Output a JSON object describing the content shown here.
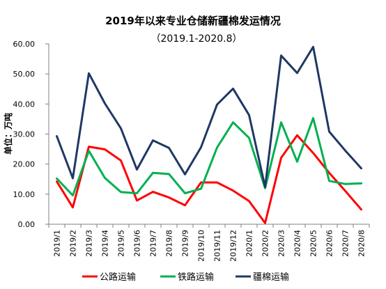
{
  "chart_data": {
    "type": "line",
    "title": "2019年以来专业仓储新疆棉发运情况",
    "subtitle": "（2019.1-2020.8）",
    "ylabel": "单位：万吨",
    "xlabel": "",
    "ylim": [
      0,
      60
    ],
    "yticks": [
      "0.00",
      "10.00",
      "20.00",
      "30.00",
      "40.00",
      "50.00",
      "60.00"
    ],
    "grid": false,
    "legend_position": "bottom",
    "categories": [
      "2019/1",
      "2019/2",
      "2019/3",
      "2019/4",
      "2019/5",
      "2019/6",
      "2019/7",
      "2019/8",
      "2019/9",
      "2019/10",
      "2019/11",
      "2019/12",
      "2020/1",
      "2020/2",
      "2020/3",
      "2020/4",
      "2020/5",
      "2020/6",
      "2020/7",
      "2020/8"
    ],
    "series": [
      {
        "name": "公路运输",
        "color": "#ff0000",
        "values": [
          14.2,
          5.6,
          25.8,
          24.9,
          21.2,
          7.9,
          10.8,
          8.9,
          6.3,
          13.9,
          13.9,
          11.2,
          7.7,
          0.4,
          22.1,
          29.6,
          23.7,
          17.1,
          11.1,
          4.9
        ]
      },
      {
        "name": "铁路运输",
        "color": "#00b050",
        "values": [
          15.2,
          9.6,
          24.4,
          15.4,
          10.7,
          10.3,
          17.1,
          16.7,
          10.3,
          11.8,
          25.5,
          33.9,
          28.7,
          12.0,
          33.9,
          20.8,
          35.3,
          14.4,
          13.4,
          13.6
        ]
      },
      {
        "name": "疆棉运输",
        "color": "#1f3864",
        "values": [
          29.3,
          15.3,
          50.2,
          40.2,
          31.9,
          18.2,
          27.9,
          25.4,
          16.6,
          25.6,
          39.8,
          45.1,
          36.3,
          12.4,
          56.1,
          50.3,
          59.0,
          30.8,
          24.5,
          18.6
        ]
      }
    ]
  }
}
